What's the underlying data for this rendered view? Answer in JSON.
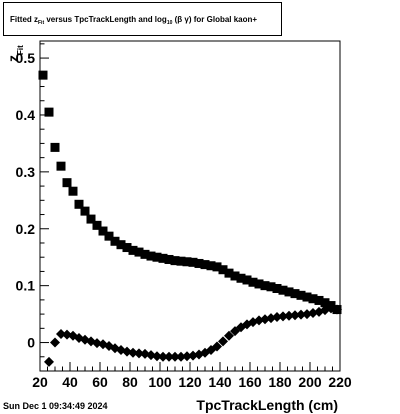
{
  "title": {
    "part1": "Fitted  z",
    "sub1": "Fit",
    "part2": "  versus TpcTrackLength and log",
    "sub2": "10",
    "part3": " (",
    "sym1": "β",
    "part4": "  ",
    "sym2": "γ",
    "part5": ") for Global kaon+"
  },
  "timestamp": "Sun Dec  1 09:34:49 2024",
  "chart_data": {
    "type": "scatter",
    "title": "Fitted z_Fit versus TpcTrackLength and log10(βγ) for Global kaon+",
    "xlabel": "TpcTrackLength (cm)",
    "ylabel": "z_Fit",
    "ylabel_main": "z",
    "ylabel_sub": "Fit",
    "xlim": [
      20,
      220
    ],
    "ylim": [
      -0.05,
      0.53
    ],
    "grid": true,
    "x_ticks": [
      20,
      40,
      60,
      80,
      100,
      120,
      140,
      160,
      180,
      200,
      220
    ],
    "x_tick_labels": [
      "20",
      "40",
      "60",
      "80",
      "100",
      "120",
      "140",
      "160",
      "180",
      "200",
      "220"
    ],
    "y_ticks": [
      0,
      0.1,
      0.2,
      0.3,
      0.4,
      0.5
    ],
    "y_tick_labels": [
      "0",
      "0.1",
      "0.2",
      "0.3",
      "0.4",
      "0.5"
    ],
    "series": [
      {
        "marker": "square",
        "color": "#000000",
        "x": [
          22,
          26,
          30,
          34,
          38,
          42,
          46,
          50,
          54,
          58,
          62,
          66,
          70,
          74,
          78,
          82,
          86,
          90,
          94,
          98,
          102,
          106,
          110,
          114,
          118,
          122,
          126,
          130,
          134,
          138,
          142,
          146,
          150,
          154,
          158,
          162,
          166,
          170,
          174,
          178,
          182,
          186,
          190,
          194,
          198,
          202,
          206,
          210,
          214,
          218
        ],
        "y": [
          0.47,
          0.405,
          0.343,
          0.31,
          0.281,
          0.266,
          0.243,
          0.231,
          0.217,
          0.206,
          0.196,
          0.187,
          0.178,
          0.172,
          0.167,
          0.162,
          0.159,
          0.155,
          0.152,
          0.15,
          0.148,
          0.146,
          0.144,
          0.143,
          0.142,
          0.141,
          0.139,
          0.137,
          0.135,
          0.133,
          0.128,
          0.122,
          0.117,
          0.113,
          0.11,
          0.106,
          0.103,
          0.1,
          0.098,
          0.095,
          0.092,
          0.089,
          0.086,
          0.083,
          0.08,
          0.077,
          0.074,
          0.07,
          0.065,
          0.058
        ]
      },
      {
        "marker": "diamond",
        "color": "#000000",
        "x": [
          26,
          30,
          34,
          38,
          42,
          46,
          50,
          54,
          58,
          62,
          66,
          70,
          74,
          78,
          82,
          86,
          90,
          94,
          98,
          102,
          106,
          110,
          114,
          118,
          122,
          126,
          130,
          134,
          138,
          142,
          146,
          150,
          154,
          158,
          162,
          166,
          170,
          174,
          178,
          182,
          186,
          190,
          194,
          198,
          202,
          206,
          210,
          214,
          218
        ],
        "y": [
          -0.034,
          0.0,
          0.015,
          0.014,
          0.012,
          0.008,
          0.005,
          0.002,
          -0.001,
          -0.003,
          -0.006,
          -0.01,
          -0.013,
          -0.016,
          -0.018,
          -0.019,
          -0.02,
          -0.022,
          -0.024,
          -0.025,
          -0.025,
          -0.025,
          -0.025,
          -0.024,
          -0.023,
          -0.021,
          -0.018,
          -0.013,
          -0.007,
          0.002,
          0.012,
          0.02,
          0.027,
          0.032,
          0.036,
          0.039,
          0.041,
          0.043,
          0.045,
          0.046,
          0.047,
          0.048,
          0.049,
          0.05,
          0.052,
          0.054,
          0.057,
          0.06,
          0.058
        ]
      }
    ]
  }
}
